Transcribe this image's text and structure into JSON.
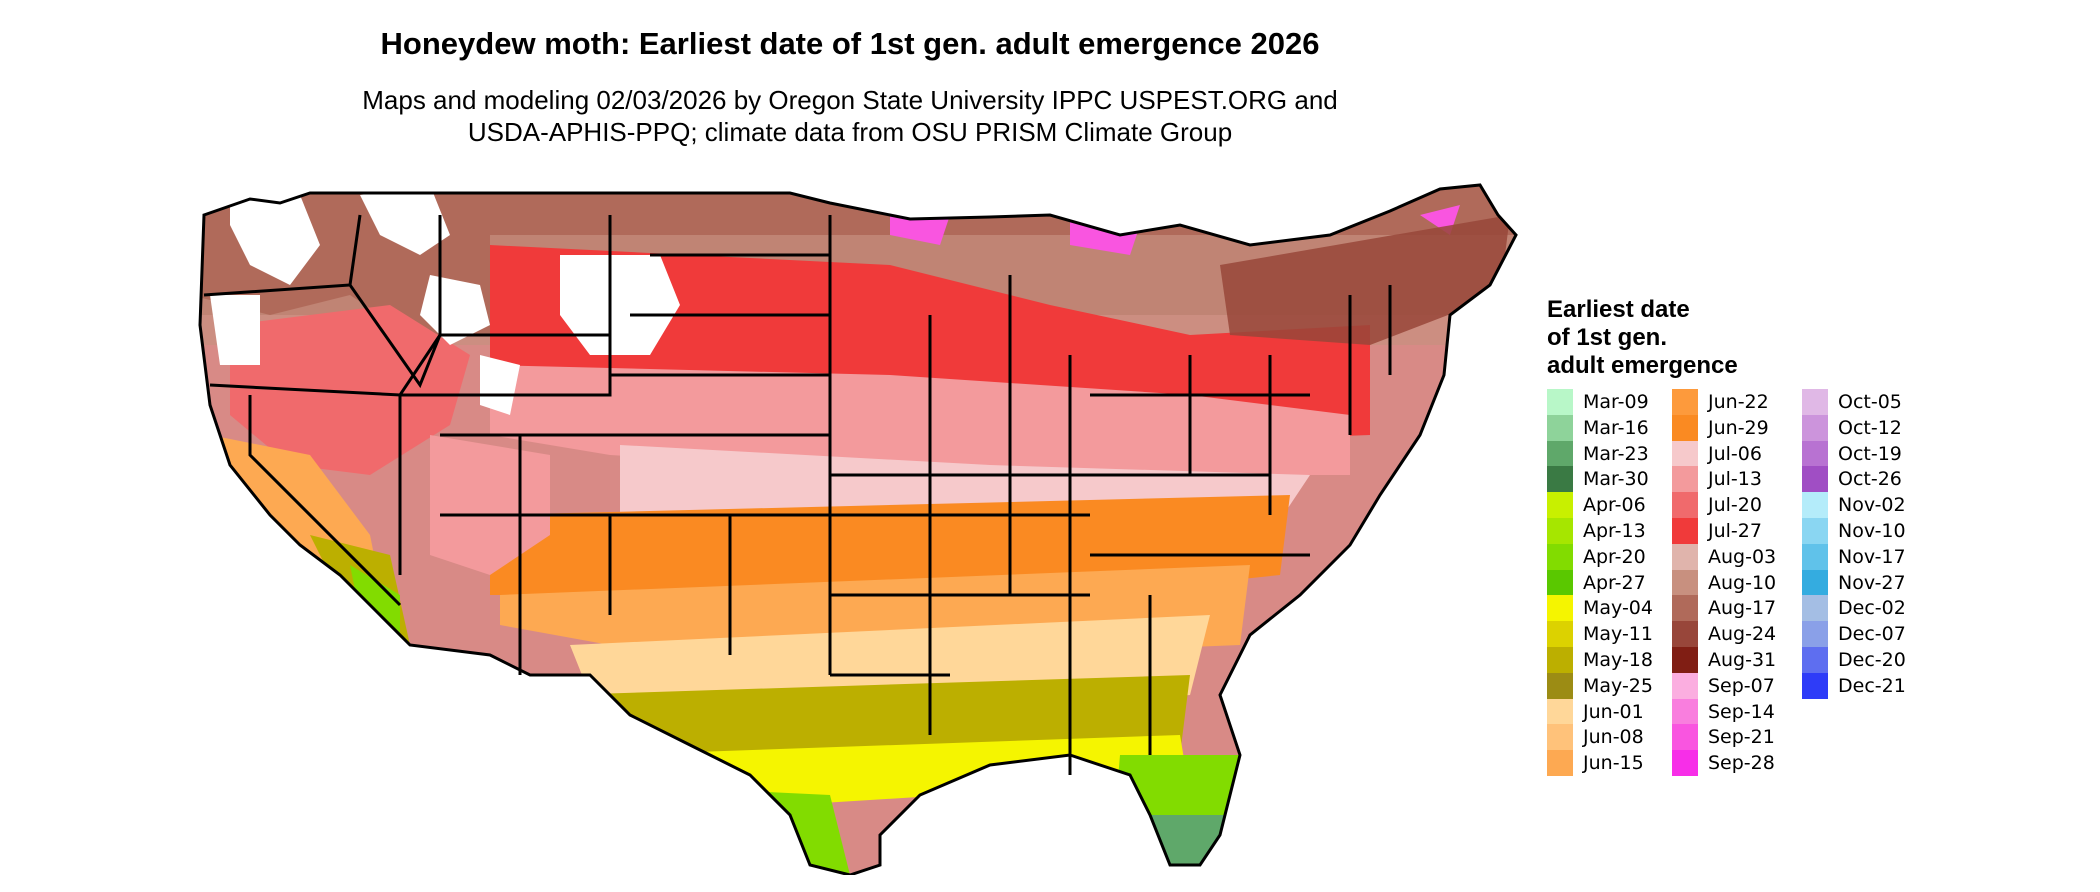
{
  "title": "Honeydew moth: Earliest date of 1st gen. adult emergence 2026",
  "subtitle": {
    "line1": "Maps and modeling 02/03/2026 by Oregon State University IPPC USPEST.ORG and",
    "line2": "USDA-APHIS-PPQ; climate data from OSU PRISM Climate Group"
  },
  "legend": {
    "title_lines": [
      "Earliest date",
      "of 1st gen.",
      "adult emergence"
    ],
    "columns": [
      [
        {
          "label": "Mar-09",
          "color": "#b8f7c8"
        },
        {
          "label": "Mar-16",
          "color": "#8ed39a"
        },
        {
          "label": "Mar-23",
          "color": "#5fa86a"
        },
        {
          "label": "Mar-30",
          "color": "#3a7a44"
        },
        {
          "label": "Apr-06",
          "color": "#c8f000"
        },
        {
          "label": "Apr-13",
          "color": "#a6e600"
        },
        {
          "label": "Apr-20",
          "color": "#82dc00"
        },
        {
          "label": "Apr-27",
          "color": "#5ac800"
        },
        {
          "label": "May-04",
          "color": "#f5f500"
        },
        {
          "label": "May-11",
          "color": "#dcd200"
        },
        {
          "label": "May-18",
          "color": "#bcaf00"
        },
        {
          "label": "May-25",
          "color": "#9c8c14"
        },
        {
          "label": "Jun-01",
          "color": "#ffd799"
        },
        {
          "label": "Jun-08",
          "color": "#ffc27a"
        },
        {
          "label": "Jun-15",
          "color": "#fda952"
        }
      ],
      [
        {
          "label": "Jun-22",
          "color": "#fd9a3c"
        },
        {
          "label": "Jun-29",
          "color": "#fa8a22"
        },
        {
          "label": "Jul-06",
          "color": "#f6c9cb"
        },
        {
          "label": "Jul-13",
          "color": "#f39a9c"
        },
        {
          "label": "Jul-20",
          "color": "#f06a6c"
        },
        {
          "label": "Jul-27",
          "color": "#f03a3a"
        },
        {
          "label": "Aug-03",
          "color": "#e0b4ac"
        },
        {
          "label": "Aug-10",
          "color": "#c8907f"
        },
        {
          "label": "Aug-17",
          "color": "#b06a5a"
        },
        {
          "label": "Aug-24",
          "color": "#98463a"
        },
        {
          "label": "Aug-31",
          "color": "#801e14"
        },
        {
          "label": "Sep-07",
          "color": "#fbaee0"
        },
        {
          "label": "Sep-14",
          "color": "#f97ede"
        },
        {
          "label": "Sep-21",
          "color": "#f955e0"
        },
        {
          "label": "Sep-28",
          "color": "#f72ee8"
        }
      ],
      [
        {
          "label": "Oct-05",
          "color": "#e0b8e6"
        },
        {
          "label": "Oct-12",
          "color": "#cc94dc"
        },
        {
          "label": "Oct-19",
          "color": "#b872d2"
        },
        {
          "label": "Oct-26",
          "color": "#a04ec4"
        },
        {
          "label": "Nov-02",
          "color": "#b4ecfa"
        },
        {
          "label": "Nov-10",
          "color": "#8ad6f2"
        },
        {
          "label": "Nov-17",
          "color": "#60c2ea"
        },
        {
          "label": "Nov-27",
          "color": "#34ace0"
        },
        {
          "label": "Dec-02",
          "color": "#a4bee4"
        },
        {
          "label": "Dec-07",
          "color": "#8aa0e8"
        },
        {
          "label": "Dec-20",
          "color": "#5e6ef0"
        },
        {
          "label": "Dec-21",
          "color": "#2e3cf8"
        }
      ]
    ]
  }
}
